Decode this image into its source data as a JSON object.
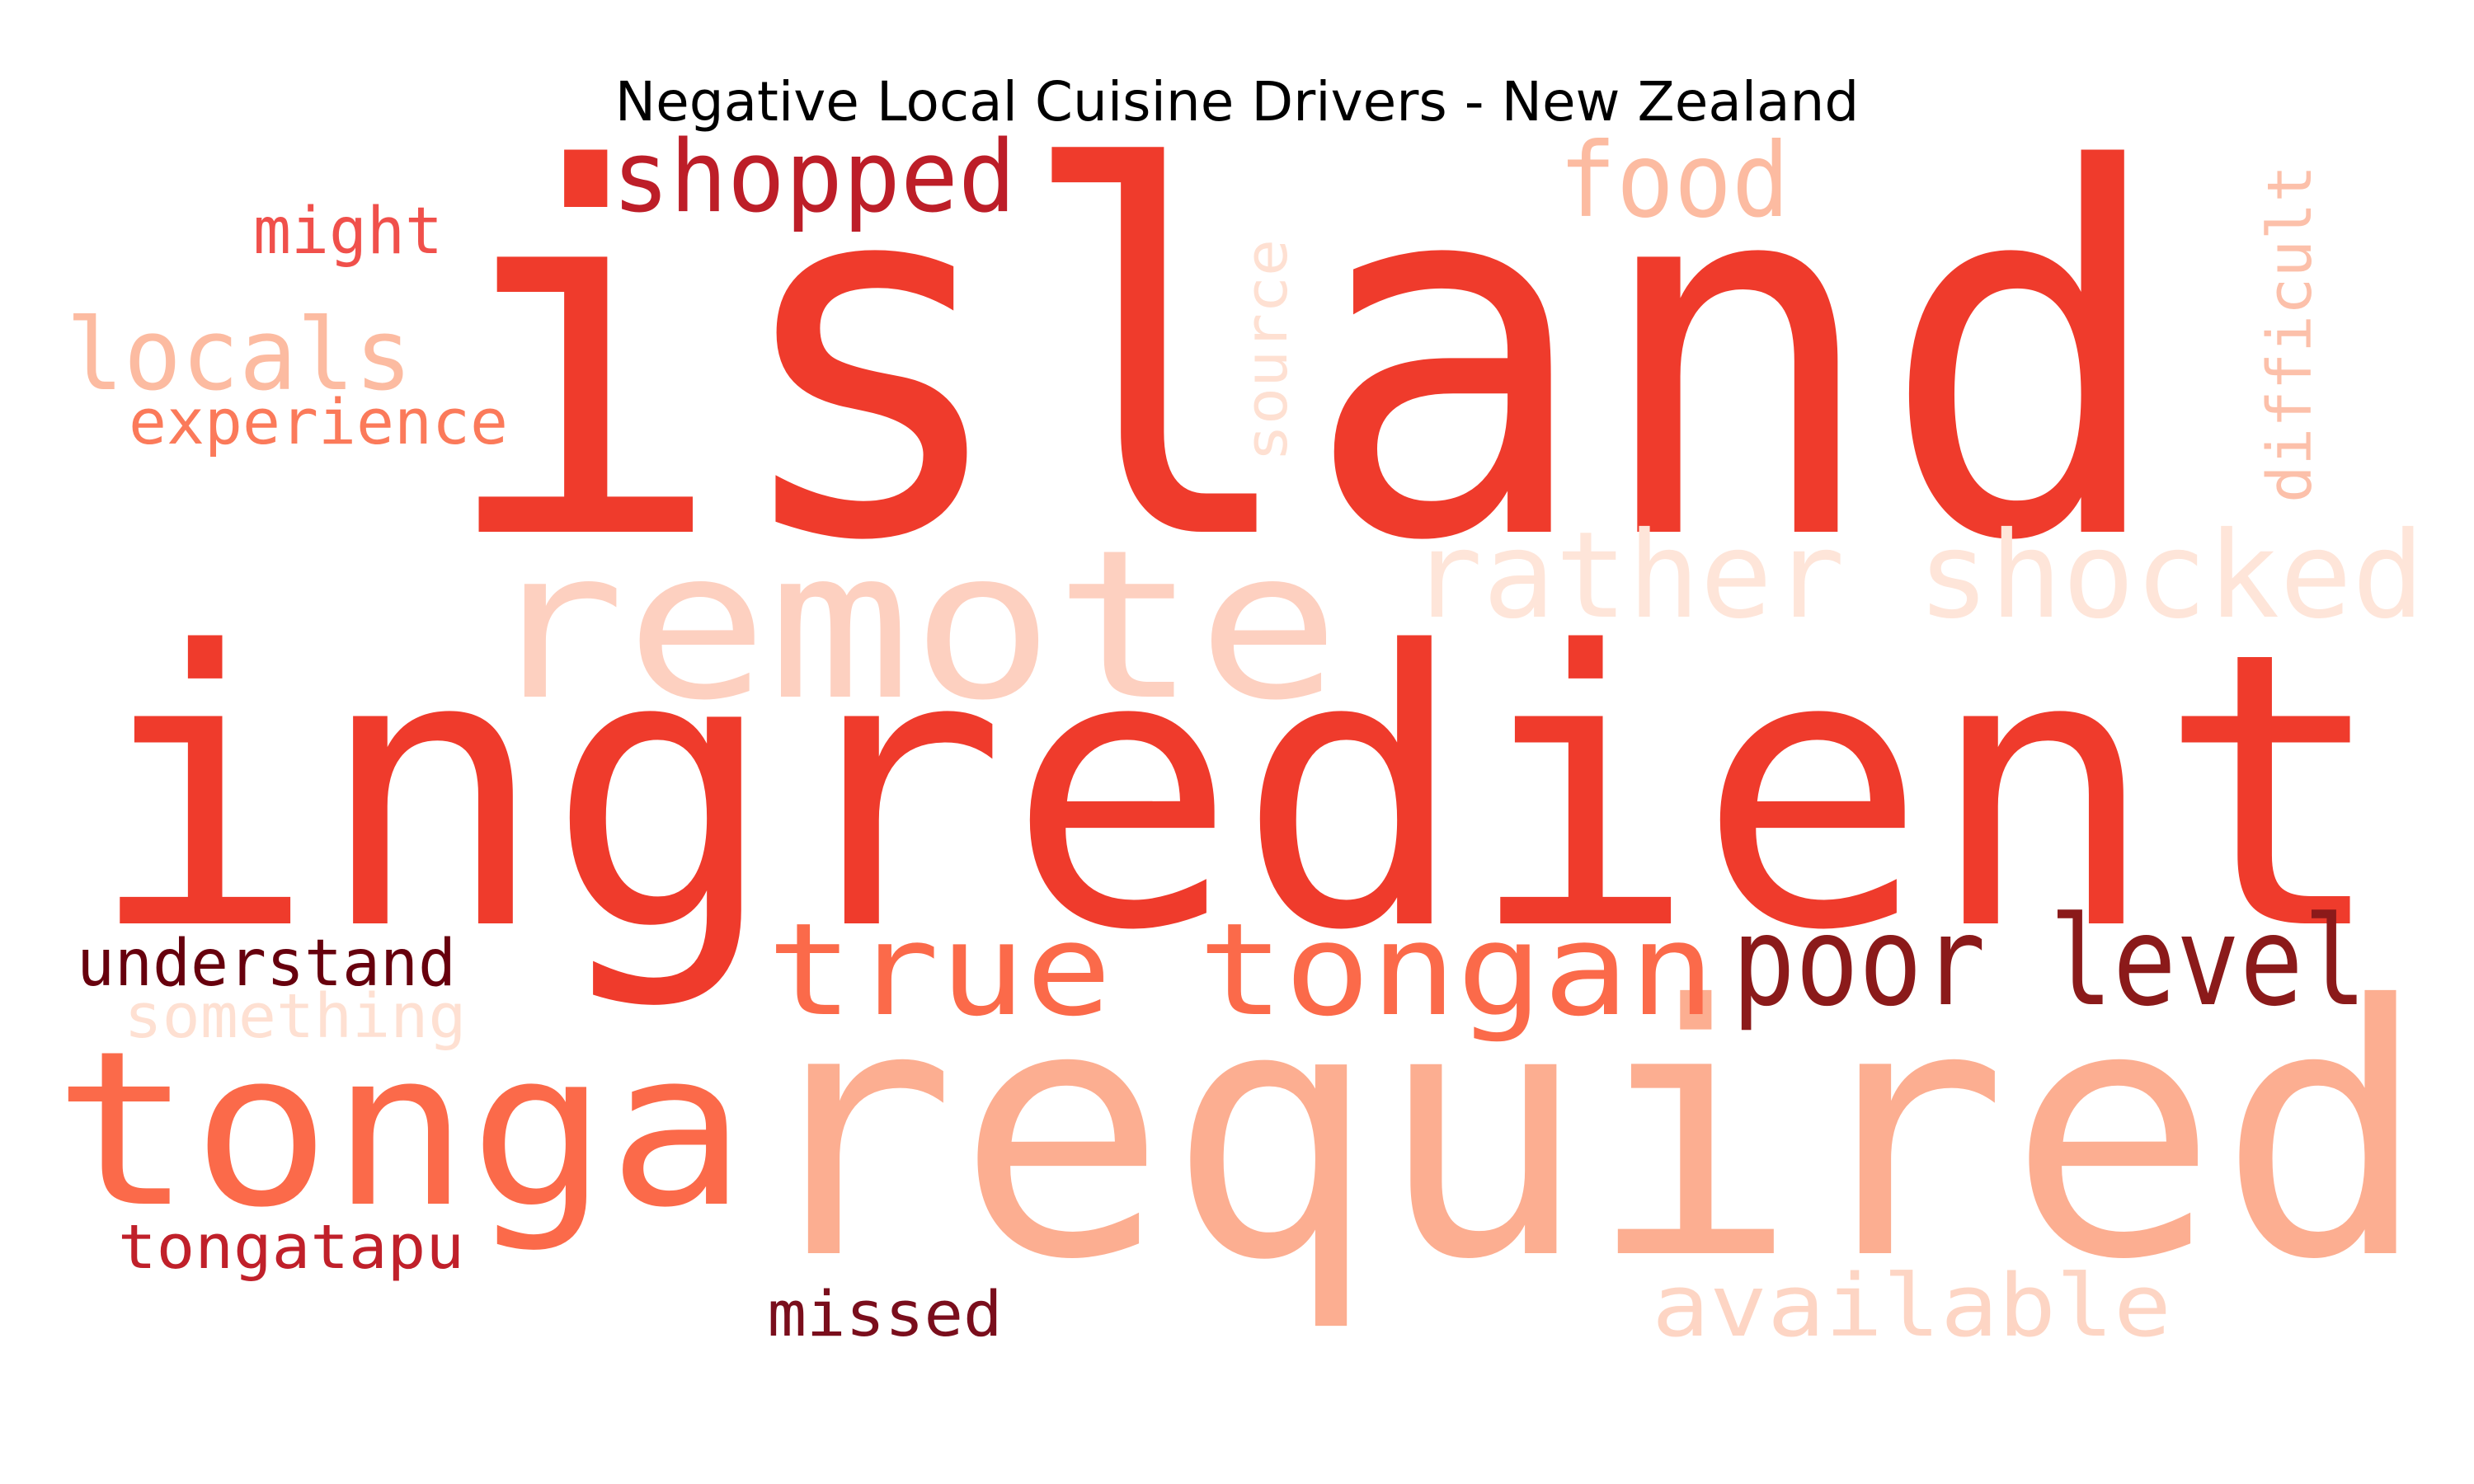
{
  "title": "Negative Local Cuisine Drivers - New Zealand",
  "wordcloud": {
    "colormap": "Reds",
    "words": [
      {
        "text": "island",
        "color": "#ef3b2c",
        "orientation": "horizontal"
      },
      {
        "text": "ingredient",
        "color": "#ef3b2c",
        "orientation": "horizontal"
      },
      {
        "text": "required",
        "color": "#fcae91",
        "orientation": "horizontal"
      },
      {
        "text": "remote",
        "color": "#fdd0c0",
        "orientation": "horizontal"
      },
      {
        "text": "tonga",
        "color": "#fb6a4a",
        "orientation": "horizontal"
      },
      {
        "text": "true tongan",
        "color": "#fb6a4a",
        "orientation": "horizontal"
      },
      {
        "text": "poor level",
        "color": "#8b1a1a",
        "orientation": "horizontal"
      },
      {
        "text": "rather shocked",
        "color": "#fee5d9",
        "orientation": "horizontal"
      },
      {
        "text": "shopped",
        "color": "#bd1e28",
        "orientation": "horizontal"
      },
      {
        "text": "food",
        "color": "#fcbba1",
        "orientation": "horizontal"
      },
      {
        "text": "locals",
        "color": "#fcbba1",
        "orientation": "horizontal"
      },
      {
        "text": "might",
        "color": "#f0504b",
        "orientation": "horizontal"
      },
      {
        "text": "experience",
        "color": "#fb7a5a",
        "orientation": "horizontal"
      },
      {
        "text": "source",
        "color": "#fee0d2",
        "orientation": "vertical"
      },
      {
        "text": "difficult",
        "color": "#fcc0aa",
        "orientation": "vertical"
      },
      {
        "text": "understand",
        "color": "#67000d",
        "orientation": "horizontal"
      },
      {
        "text": "something",
        "color": "#fee0d2",
        "orientation": "horizontal"
      },
      {
        "text": "tongatapu",
        "color": "#c0202a",
        "orientation": "horizontal"
      },
      {
        "text": "missed",
        "color": "#7a0e1c",
        "orientation": "horizontal"
      },
      {
        "text": "available",
        "color": "#fdd5c4",
        "orientation": "horizontal"
      }
    ]
  }
}
